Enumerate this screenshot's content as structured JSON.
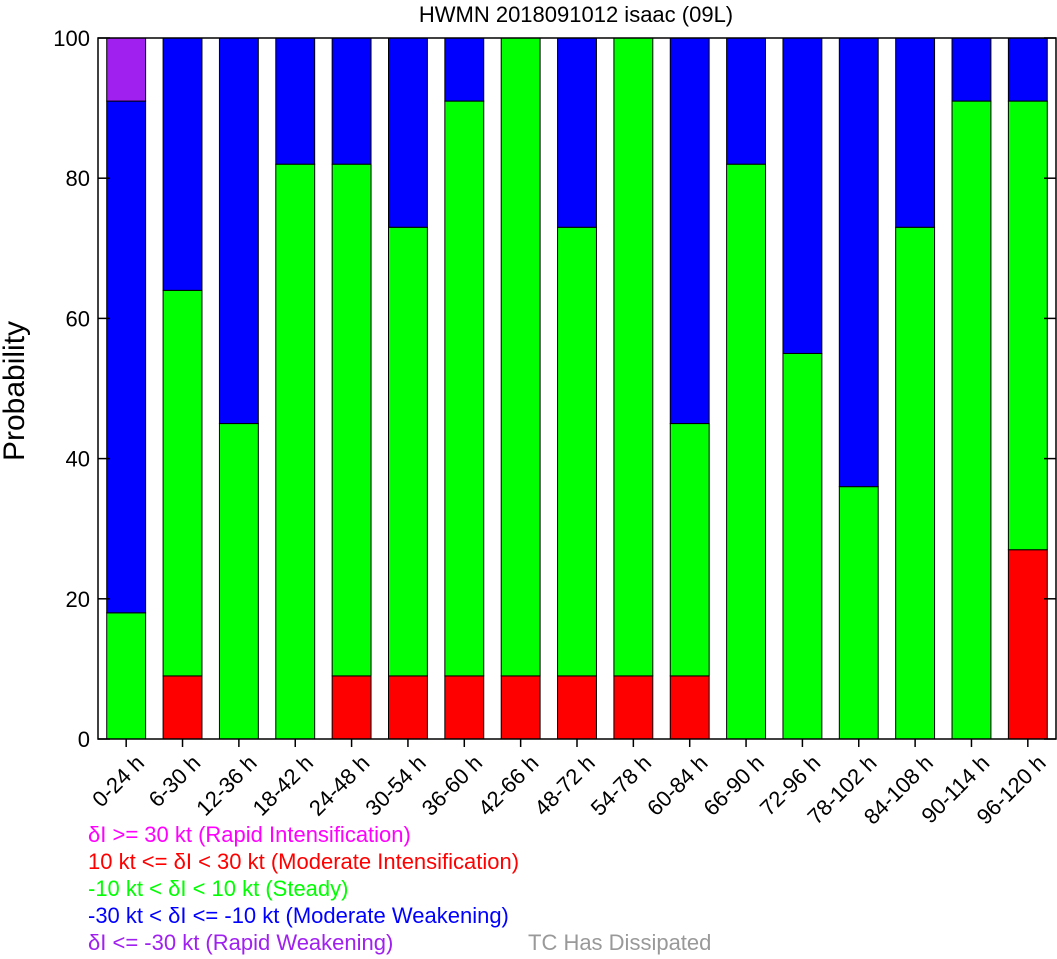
{
  "chart_data": {
    "type": "bar",
    "stacked": true,
    "title": "HWMN 2018091012 isaac (09L)",
    "xlabel": "",
    "ylabel": "Probability",
    "ylim": [
      0,
      100
    ],
    "yticks": [
      0,
      20,
      40,
      60,
      80,
      100
    ],
    "categories": [
      "0-24 h",
      "6-30 h",
      "12-36 h",
      "18-42 h",
      "24-48 h",
      "30-54 h",
      "36-60 h",
      "42-66 h",
      "48-72 h",
      "54-78 h",
      "60-84 h",
      "66-90 h",
      "72-96 h",
      "78-102 h",
      "84-108 h",
      "90-114 h",
      "96-120 h"
    ],
    "series": [
      {
        "key": "ri",
        "color": "#ff00ff",
        "values": [
          0,
          0,
          0,
          0,
          0,
          0,
          0,
          0,
          0,
          0,
          0,
          0,
          0,
          0,
          0,
          0,
          0
        ]
      },
      {
        "key": "mi",
        "color": "#ff0000",
        "values": [
          0,
          9,
          0,
          0,
          9,
          9,
          9,
          9,
          9,
          9,
          9,
          0,
          0,
          0,
          0,
          0,
          27
        ]
      },
      {
        "key": "steady",
        "color": "#00ff00",
        "values": [
          18,
          55,
          45,
          82,
          73,
          64,
          82,
          91,
          64,
          91,
          36,
          82,
          55,
          36,
          73,
          91,
          64
        ]
      },
      {
        "key": "mw",
        "color": "#0000ff",
        "values": [
          73,
          36,
          55,
          18,
          18,
          27,
          9,
          0,
          27,
          0,
          55,
          18,
          45,
          64,
          27,
          9,
          9
        ]
      },
      {
        "key": "rw",
        "color": "#a020f0",
        "values": [
          9,
          0,
          0,
          0,
          0,
          0,
          0,
          0,
          0,
          0,
          0,
          0,
          0,
          0,
          0,
          0,
          0
        ]
      }
    ],
    "legend": {
      "placement": "bottom-left",
      "entries": [
        {
          "text": "δI >= 30 kt (Rapid Intensification)",
          "color": "#ff00ff"
        },
        {
          "text": "10 kt <= δI < 30 kt (Moderate Intensification)",
          "color": "#ff0000"
        },
        {
          "text": "-10 kt < δI < 10 kt (Steady)",
          "color": "#00ff00"
        },
        {
          "text": "-30 kt < δI <= -10 kt (Moderate Weakening)",
          "color": "#0000ff"
        },
        {
          "text": "δI <= -30 kt (Rapid Weakening)",
          "color": "#a020f0"
        }
      ],
      "extra": {
        "text": "TC Has Dissipated",
        "color": "#999999"
      }
    },
    "grid": false
  }
}
